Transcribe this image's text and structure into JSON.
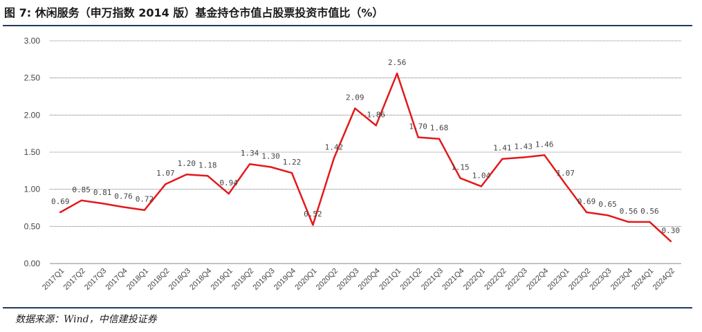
{
  "header": {
    "title": "图 7: 休闲服务（申万指数 2014 版）基金持仓市值占股票投资市值比（%）"
  },
  "footer": {
    "source": "数据来源：Wind，中信建投证券"
  },
  "colors": {
    "line": "#e3181b",
    "rule": "#1f3a5f",
    "grid": "#555555",
    "text": "#444444"
  },
  "chart_data": {
    "type": "line",
    "title": "图 7: 休闲服务（申万指数 2014 版）基金持仓市值占股票投资市值比（%）",
    "xlabel": "",
    "ylabel": "",
    "ylim": [
      0,
      3
    ],
    "yticks": [
      "0.00",
      "0.50",
      "1.00",
      "1.50",
      "2.00",
      "2.50",
      "3.00"
    ],
    "grid": true,
    "legend": "none",
    "categories": [
      "2017Q1",
      "2017Q2",
      "2017Q3",
      "2017Q4",
      "2018Q1",
      "2018Q2",
      "2018Q3",
      "2018Q4",
      "2019Q1",
      "2019Q2",
      "2019Q3",
      "2019Q4",
      "2020Q1",
      "2020Q2",
      "2020Q3",
      "2020Q4",
      "2021Q1",
      "2021Q2",
      "2021Q3",
      "2021Q4",
      "2022Q1",
      "2022Q2",
      "2022Q3",
      "2022Q4",
      "2023Q1",
      "2023Q2",
      "2023Q3",
      "2023Q4",
      "2024Q1",
      "2024Q2"
    ],
    "values": [
      0.69,
      0.85,
      0.81,
      0.76,
      0.72,
      1.07,
      1.2,
      1.18,
      0.94,
      1.34,
      1.3,
      1.22,
      0.52,
      1.42,
      2.09,
      1.86,
      2.56,
      1.7,
      1.68,
      1.15,
      1.04,
      1.41,
      1.43,
      1.46,
      1.07,
      0.69,
      0.65,
      0.56,
      0.56,
      0.3
    ],
    "data_labels": [
      "0.69",
      "0.85",
      "0.81",
      "0.76",
      "0.72",
      "1.07",
      "1.20",
      "1.18",
      "0.94",
      "1.34",
      "1.30",
      "1.22",
      "0.52",
      "1.42",
      "2.09",
      "1.86",
      "2.56",
      "1.70",
      "1.68",
      "1.15",
      "1.04",
      "1.41",
      "1.43",
      "1.46",
      "1.07",
      "0.69",
      "0.65",
      "0.56",
      "0.56",
      "0.30"
    ]
  }
}
